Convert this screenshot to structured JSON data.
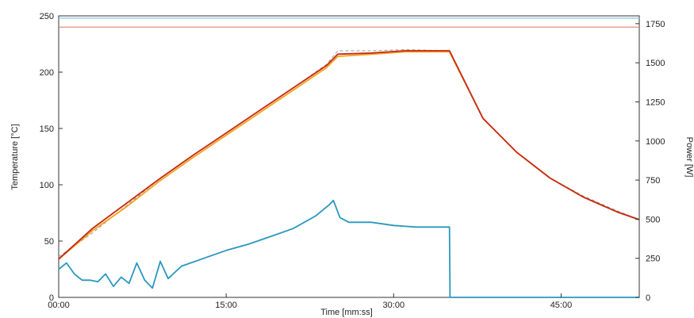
{
  "chart_data": {
    "type": "line",
    "xlabel": "Time [mm:ss]",
    "ylabel": "Temperature [°C]",
    "y2label": "Power [W]",
    "x_unit": "minutes",
    "xlim": [
      0,
      52
    ],
    "ylim": [
      0,
      250
    ],
    "y2lim": [
      0,
      1800
    ],
    "x_ticks": [
      {
        "value": 0,
        "label": "00:00"
      },
      {
        "value": 15,
        "label": "15:00"
      },
      {
        "value": 30,
        "label": "30:00"
      },
      {
        "value": 45,
        "label": "45:00"
      }
    ],
    "y_ticks": [
      0,
      50,
      100,
      150,
      200,
      250
    ],
    "y2_ticks": [
      0,
      250,
      500,
      750,
      1000,
      1250,
      1500,
      1750
    ],
    "grid": false,
    "reference_lines": [
      {
        "axis": "y",
        "value": 248,
        "color": "#8fc3df"
      },
      {
        "axis": "y",
        "value": 240,
        "color": "#e0806e"
      }
    ],
    "series": [
      {
        "color": "#9a9a9a",
        "dashed": true,
        "x": [
          0,
          3,
          6,
          9,
          12,
          15,
          18,
          21,
          24,
          25,
          28,
          31,
          35,
          38,
          41,
          44,
          47,
          50,
          52
        ],
        "y": [
          36,
          57,
          81,
          105,
          126,
          146,
          166,
          186,
          207,
          219,
          219,
          220,
          219,
          159,
          129,
          106,
          90,
          77,
          69
        ],
        "axis": "left"
      },
      {
        "color": "#f2a21b",
        "x": [
          0,
          3,
          6,
          9,
          12,
          15,
          18,
          21,
          24,
          25,
          28,
          31,
          35,
          38,
          41,
          44,
          47,
          50,
          52
        ],
        "y": [
          34,
          59,
          80,
          103,
          124,
          144,
          164,
          184,
          204,
          214,
          216,
          218,
          218,
          159,
          129,
          106,
          89,
          76,
          69
        ],
        "axis": "left"
      },
      {
        "color": "#c62813",
        "x": [
          0,
          3,
          6,
          9,
          12,
          15,
          18,
          21,
          24,
          25,
          28,
          31,
          35,
          38,
          41,
          44,
          47,
          50,
          52
        ],
        "y": [
          34,
          61,
          83,
          105,
          126,
          146,
          166,
          186,
          206,
          216,
          217,
          219,
          219,
          159,
          129,
          106,
          89,
          76,
          69
        ],
        "axis": "left"
      },
      {
        "color": "#2a97be",
        "x": [
          0,
          0.7,
          1.4,
          2.1,
          2.8,
          3.5,
          4.2,
          4.9,
          5.6,
          6.3,
          7.0,
          7.7,
          8.4,
          9.1,
          9.8,
          11,
          13,
          15,
          17,
          19,
          21,
          23,
          24.2,
          24.6,
          25.2,
          26,
          28,
          30,
          32,
          34,
          35,
          35.05,
          52
        ],
        "y": [
          180,
          220,
          150,
          110,
          110,
          100,
          150,
          70,
          130,
          90,
          220,
          110,
          60,
          230,
          120,
          200,
          250,
          300,
          340,
          390,
          440,
          520,
          590,
          620,
          510,
          480,
          480,
          460,
          450,
          450,
          450,
          0,
          0
        ],
        "axis": "right"
      }
    ]
  }
}
